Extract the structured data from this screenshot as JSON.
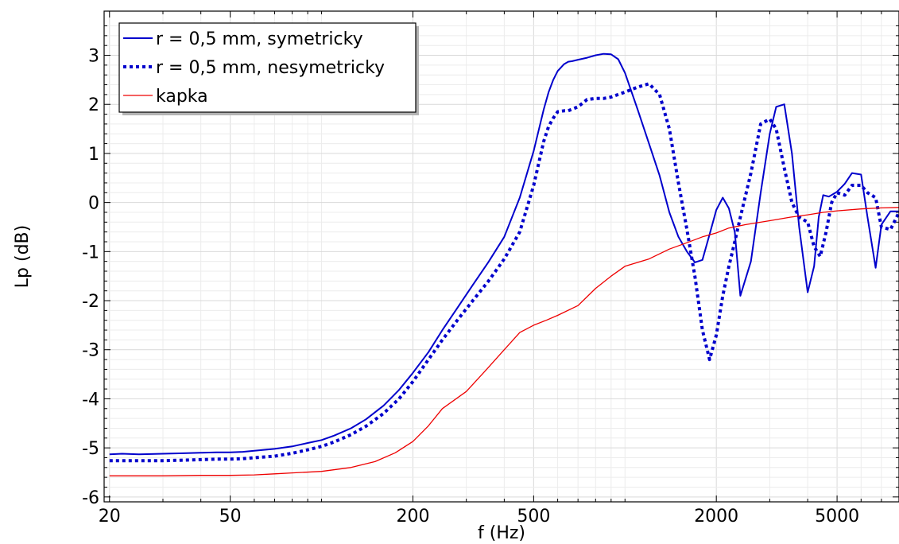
{
  "chart_data": {
    "type": "line",
    "title": "",
    "xlabel": "f (Hz)",
    "ylabel": "Lp (dB)",
    "xscale": "log",
    "xlim": [
      19.2,
      8000
    ],
    "ylim": [
      -6.1,
      3.9
    ],
    "xticks": [
      20,
      50,
      200,
      500,
      2000,
      5000
    ],
    "xtick_labels": [
      "20",
      "50",
      "200",
      "500",
      "2000",
      "5000"
    ],
    "yticks": [
      -6,
      -5,
      -4,
      -3,
      -2,
      -1,
      0,
      1,
      2,
      3
    ],
    "ytick_labels": [
      "-6",
      "-5",
      "-4",
      "-3",
      "-2",
      "-1",
      "0",
      "1",
      "2",
      "3"
    ],
    "grid": true,
    "legend_position": "top-left",
    "series": [
      {
        "name": "r = 0,5 mm, symetricky",
        "color": "#0000cc",
        "style": "solid",
        "x": [
          20,
          22,
          25,
          30,
          35,
          40,
          45,
          50,
          55,
          60,
          70,
          80,
          90,
          100,
          110,
          125,
          140,
          160,
          180,
          200,
          225,
          250,
          280,
          315,
          355,
          400,
          450,
          500,
          540,
          560,
          580,
          600,
          630,
          650,
          670,
          700,
          750,
          800,
          850,
          900,
          950,
          1000,
          1100,
          1200,
          1300,
          1400,
          1500,
          1600,
          1700,
          1800,
          1900,
          2000,
          2100,
          2200,
          2300,
          2400,
          2600,
          2800,
          3000,
          3150,
          3350,
          3550,
          3750,
          4000,
          4200,
          4350,
          4500,
          4700,
          5000,
          5300,
          5600,
          6000,
          6300,
          6700,
          7000,
          7500,
          8000
        ],
        "y": [
          -5.13,
          -5.12,
          -5.13,
          -5.12,
          -5.11,
          -5.1,
          -5.09,
          -5.09,
          -5.08,
          -5.06,
          -5.02,
          -4.97,
          -4.9,
          -4.84,
          -4.75,
          -4.6,
          -4.42,
          -4.14,
          -3.82,
          -3.47,
          -3.05,
          -2.6,
          -2.15,
          -1.68,
          -1.21,
          -0.7,
          0.1,
          1.05,
          1.9,
          2.25,
          2.5,
          2.68,
          2.82,
          2.87,
          2.88,
          2.91,
          2.95,
          3.0,
          3.03,
          3.02,
          2.92,
          2.64,
          1.9,
          1.2,
          0.55,
          -0.2,
          -0.7,
          -1.0,
          -1.22,
          -1.17,
          -0.65,
          -0.15,
          0.1,
          -0.12,
          -0.6,
          -1.9,
          -1.2,
          0.2,
          1.4,
          1.95,
          2.0,
          1.0,
          -0.5,
          -1.83,
          -1.3,
          -0.3,
          0.15,
          0.12,
          0.22,
          0.38,
          0.6,
          0.57,
          -0.3,
          -1.33,
          -0.45,
          -0.18,
          -0.18
        ]
      },
      {
        "name": "r = 0,5 mm, nesymetricky",
        "color": "#0000cc",
        "style": "dotted",
        "x": [
          20,
          22,
          25,
          30,
          35,
          40,
          45,
          50,
          55,
          60,
          70,
          80,
          90,
          100,
          110,
          125,
          140,
          160,
          180,
          200,
          225,
          250,
          280,
          315,
          355,
          400,
          450,
          500,
          540,
          560,
          580,
          600,
          630,
          650,
          700,
          750,
          800,
          850,
          900,
          1000,
          1100,
          1200,
          1300,
          1400,
          1500,
          1600,
          1700,
          1800,
          1900,
          2000,
          2100,
          2200,
          2300,
          2400,
          2600,
          2800,
          3000,
          3150,
          3350,
          3550,
          3750,
          4000,
          4200,
          4400,
          4600,
          4800,
          5000,
          5300,
          5600,
          6000,
          6300,
          6700,
          7000,
          7500,
          8000
        ],
        "y": [
          -5.26,
          -5.26,
          -5.26,
          -5.26,
          -5.25,
          -5.24,
          -5.23,
          -5.23,
          -5.22,
          -5.2,
          -5.17,
          -5.11,
          -5.04,
          -4.97,
          -4.88,
          -4.73,
          -4.56,
          -4.3,
          -4.0,
          -3.65,
          -3.2,
          -2.8,
          -2.4,
          -2.0,
          -1.6,
          -1.15,
          -0.6,
          0.35,
          1.25,
          1.55,
          1.72,
          1.85,
          1.87,
          1.87,
          1.95,
          2.1,
          2.12,
          2.12,
          2.15,
          2.25,
          2.35,
          2.42,
          2.2,
          1.5,
          0.4,
          -0.55,
          -1.5,
          -2.6,
          -3.2,
          -2.7,
          -1.9,
          -1.3,
          -0.8,
          -0.3,
          0.6,
          1.6,
          1.7,
          1.5,
          0.7,
          0.0,
          -0.3,
          -0.4,
          -0.9,
          -1.1,
          -0.6,
          0.0,
          0.2,
          0.15,
          0.35,
          0.35,
          0.2,
          0.1,
          -0.5,
          -0.55,
          -0.2
        ]
      },
      {
        "name": "kapka",
        "color": "#ee0000",
        "style": "solid",
        "x": [
          20,
          25,
          30,
          40,
          50,
          60,
          70,
          80,
          100,
          125,
          150,
          175,
          200,
          225,
          250,
          300,
          350,
          400,
          450,
          500,
          550,
          600,
          700,
          800,
          900,
          1000,
          1200,
          1400,
          1600,
          1800,
          2000,
          2200,
          2500,
          3000,
          3500,
          4000,
          4500,
          5000,
          6000,
          7000,
          8000
        ],
        "y": [
          -5.57,
          -5.57,
          -5.57,
          -5.56,
          -5.56,
          -5.55,
          -5.53,
          -5.51,
          -5.48,
          -5.4,
          -5.28,
          -5.1,
          -4.87,
          -4.55,
          -4.2,
          -3.85,
          -3.4,
          -3.0,
          -2.65,
          -2.5,
          -2.4,
          -2.3,
          -2.1,
          -1.75,
          -1.5,
          -1.3,
          -1.15,
          -0.95,
          -0.82,
          -0.7,
          -0.62,
          -0.52,
          -0.45,
          -0.37,
          -0.3,
          -0.25,
          -0.2,
          -0.17,
          -0.13,
          -0.11,
          -0.1
        ]
      }
    ]
  }
}
